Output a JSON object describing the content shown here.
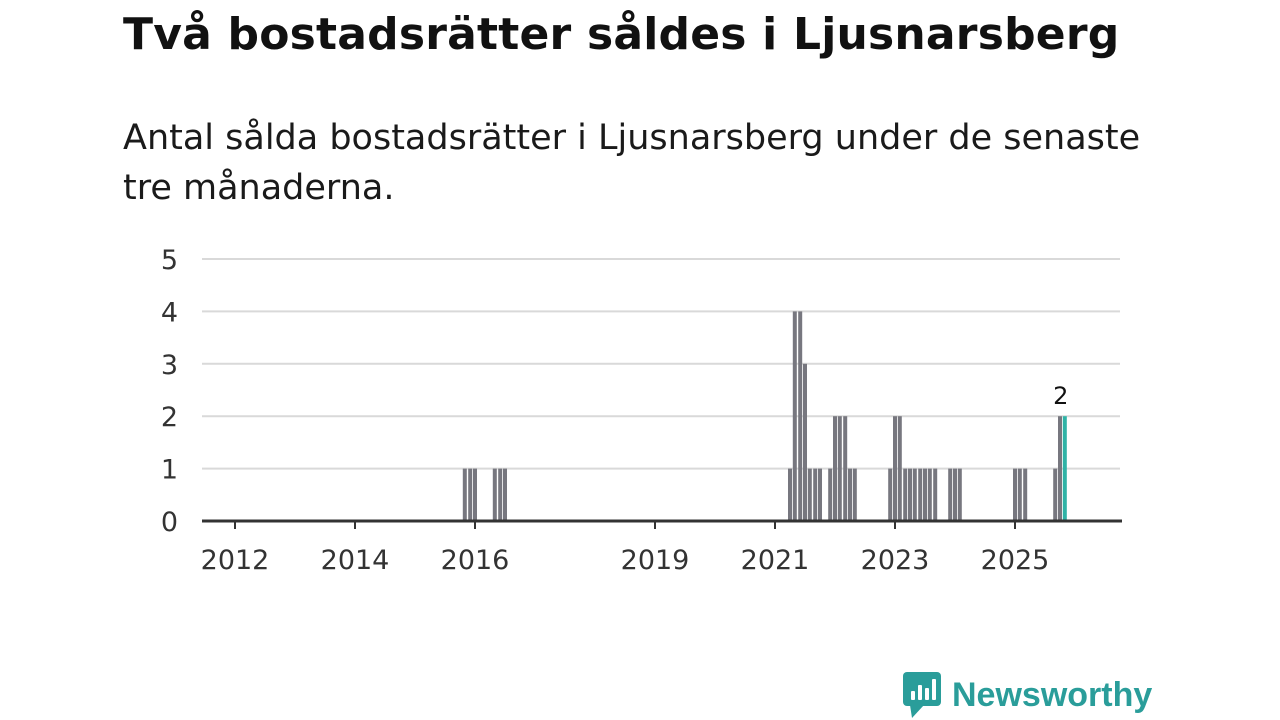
{
  "title": "Två bostadsrätter såldes i Ljusnarsberg",
  "subtitle": "Antal sålda bostadsrätter i Ljusnarsberg under de senaste tre månaderna.",
  "brand": {
    "name": "Newsworthy",
    "color": "#2a9d9a",
    "icon": "chart-bubble-icon"
  },
  "colors": {
    "bar": "#77777f",
    "highlight": "#2fb3a6",
    "grid": "#d9d9d9",
    "axis": "#333333"
  },
  "chart_data": {
    "type": "bar",
    "title": "",
    "xlabel": "",
    "ylabel": "",
    "ylim": [
      0,
      5
    ],
    "yticks": [
      0,
      1,
      2,
      3,
      4,
      5
    ],
    "xlim": [
      2011.45,
      2026.75
    ],
    "xticks": [
      2012,
      2014,
      2016,
      2019,
      2021,
      2023,
      2025
    ],
    "grid": true,
    "bar_width_months": 1,
    "highlight_label": "2",
    "series": [
      {
        "name": "Sålda bostadsrätter",
        "points": [
          {
            "x": 2015.83,
            "value": 1
          },
          {
            "x": 2015.92,
            "value": 1
          },
          {
            "x": 2016.0,
            "value": 1
          },
          {
            "x": 2016.33,
            "value": 1
          },
          {
            "x": 2016.42,
            "value": 1
          },
          {
            "x": 2016.5,
            "value": 1
          },
          {
            "x": 2021.25,
            "value": 1
          },
          {
            "x": 2021.33,
            "value": 4
          },
          {
            "x": 2021.42,
            "value": 4
          },
          {
            "x": 2021.5,
            "value": 3
          },
          {
            "x": 2021.58,
            "value": 1
          },
          {
            "x": 2021.67,
            "value": 1
          },
          {
            "x": 2021.75,
            "value": 1
          },
          {
            "x": 2021.92,
            "value": 1
          },
          {
            "x": 2022.0,
            "value": 2
          },
          {
            "x": 2022.08,
            "value": 2
          },
          {
            "x": 2022.17,
            "value": 2
          },
          {
            "x": 2022.25,
            "value": 1
          },
          {
            "x": 2022.33,
            "value": 1
          },
          {
            "x": 2022.92,
            "value": 1
          },
          {
            "x": 2023.0,
            "value": 2
          },
          {
            "x": 2023.08,
            "value": 2
          },
          {
            "x": 2023.17,
            "value": 1
          },
          {
            "x": 2023.25,
            "value": 1
          },
          {
            "x": 2023.33,
            "value": 1
          },
          {
            "x": 2023.42,
            "value": 1
          },
          {
            "x": 2023.5,
            "value": 1
          },
          {
            "x": 2023.58,
            "value": 1
          },
          {
            "x": 2023.67,
            "value": 1
          },
          {
            "x": 2023.92,
            "value": 1
          },
          {
            "x": 2024.0,
            "value": 1
          },
          {
            "x": 2024.08,
            "value": 1
          },
          {
            "x": 2025.0,
            "value": 1
          },
          {
            "x": 2025.08,
            "value": 1
          },
          {
            "x": 2025.17,
            "value": 1
          },
          {
            "x": 2025.67,
            "value": 1
          },
          {
            "x": 2025.75,
            "value": 2
          },
          {
            "x": 2025.83,
            "value": 2,
            "highlight": true
          }
        ]
      }
    ]
  }
}
